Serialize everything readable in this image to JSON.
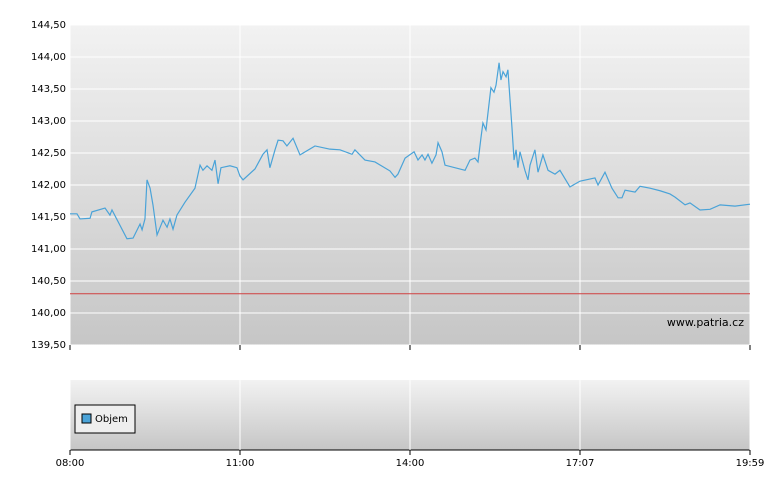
{
  "chart_data": {
    "type": "line",
    "x": [
      0,
      0.041,
      0.059,
      0.118,
      0.129,
      0.206,
      0.235,
      0.247,
      0.335,
      0.371,
      0.412,
      0.424,
      0.441,
      0.453,
      0.471,
      0.488,
      0.512,
      0.547,
      0.571,
      0.588,
      0.606,
      0.629,
      0.676,
      0.735,
      0.765,
      0.782,
      0.806,
      0.835,
      0.853,
      0.871,
      0.888,
      0.941,
      0.982,
      1.0,
      1.018,
      1.088,
      1.135,
      1.159,
      1.176,
      1.206,
      1.224,
      1.253,
      1.276,
      1.312,
      1.353,
      1.441,
      1.529,
      1.588,
      1.659,
      1.676,
      1.735,
      1.794,
      1.882,
      1.912,
      1.929,
      1.971,
      2.024,
      2.047,
      2.071,
      2.088,
      2.106,
      2.129,
      2.153,
      2.165,
      2.188,
      2.206,
      2.324,
      2.353,
      2.382,
      2.4,
      2.418,
      2.429,
      2.447,
      2.476,
      2.494,
      2.506,
      2.524,
      2.535,
      2.547,
      2.565,
      2.576,
      2.6,
      2.612,
      2.624,
      2.635,
      2.647,
      2.676,
      2.694,
      2.706,
      2.735,
      2.753,
      2.782,
      2.812,
      2.853,
      2.882,
      2.941,
      3.0,
      3.088,
      3.106,
      3.147,
      3.188,
      3.224,
      3.247,
      3.265,
      3.324,
      3.353,
      3.412,
      3.471,
      3.529,
      3.559,
      3.618,
      3.647,
      3.706,
      3.765,
      3.824,
      3.912,
      4.0
    ],
    "series": [
      {
        "color": "#4aa3d8",
        "values": [
          141.55,
          141.55,
          141.47,
          141.48,
          141.58,
          141.64,
          141.53,
          141.61,
          141.16,
          141.17,
          141.39,
          141.3,
          141.47,
          142.08,
          141.95,
          141.69,
          141.22,
          141.45,
          141.34,
          141.47,
          141.31,
          141.53,
          141.73,
          141.95,
          142.31,
          142.23,
          142.3,
          142.23,
          142.39,
          142.02,
          142.27,
          142.3,
          142.27,
          142.14,
          142.08,
          142.25,
          142.48,
          142.55,
          142.27,
          142.55,
          142.7,
          142.69,
          142.61,
          142.73,
          142.47,
          142.61,
          142.56,
          142.55,
          142.48,
          142.55,
          142.39,
          142.36,
          142.22,
          142.12,
          142.17,
          142.42,
          142.52,
          142.39,
          142.47,
          142.39,
          142.48,
          142.34,
          142.47,
          142.66,
          142.52,
          142.31,
          142.23,
          142.39,
          142.42,
          142.36,
          142.75,
          142.97,
          142.86,
          143.52,
          143.45,
          143.56,
          143.91,
          143.64,
          143.77,
          143.69,
          143.8,
          142.89,
          142.39,
          142.55,
          142.27,
          142.52,
          142.23,
          142.08,
          142.31,
          142.55,
          142.2,
          142.47,
          142.23,
          142.17,
          142.23,
          141.97,
          142.06,
          142.11,
          142.0,
          142.2,
          141.95,
          141.8,
          141.8,
          141.92,
          141.89,
          141.98,
          141.95,
          141.91,
          141.86,
          141.81,
          141.69,
          141.72,
          141.61,
          141.62,
          141.69,
          141.67,
          141.7
        ]
      }
    ],
    "reference_line": {
      "value": 140.3,
      "color": "#d04040"
    },
    "xlim": [
      0,
      4
    ],
    "xticks": [
      {
        "value": 0,
        "label": "08:00"
      },
      {
        "value": 1,
        "label": "11:00"
      },
      {
        "value": 2,
        "label": "14:00"
      },
      {
        "value": 3,
        "label": "17:07"
      },
      {
        "value": 4,
        "label": "19:59"
      }
    ],
    "ylim": [
      139.5,
      144.5
    ],
    "yticks": [
      {
        "value": 139.5,
        "label": "139,50"
      },
      {
        "value": 140,
        "label": "140,00"
      },
      {
        "value": 140.5,
        "label": "140,50"
      },
      {
        "value": 141,
        "label": "141,00"
      },
      {
        "value": 141.5,
        "label": "141,50"
      },
      {
        "value": 142,
        "label": "142,00"
      },
      {
        "value": 142.5,
        "label": "142,50"
      },
      {
        "value": 143,
        "label": "143,00"
      },
      {
        "value": 143.5,
        "label": "143,50"
      },
      {
        "value": 144,
        "label": "144,00"
      },
      {
        "value": 144.5,
        "label": "144,50"
      }
    ],
    "grid": true,
    "watermark": "www.patria.cz",
    "volume_legend": "Objem",
    "volume_color": "#4aa3d8"
  }
}
